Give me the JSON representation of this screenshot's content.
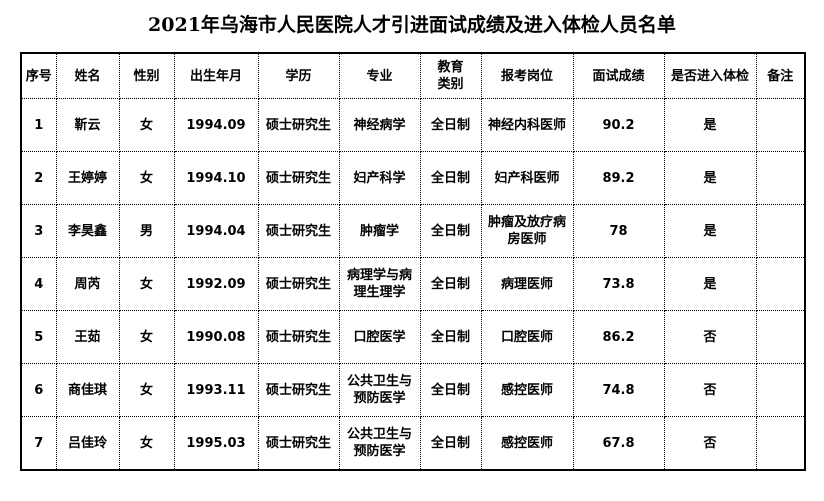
{
  "title": "2021年乌海市人民医院人才引进面试成绩及进入体检人员名单",
  "headers": [
    "序号",
    "姓名",
    "性别",
    "出生年月",
    "学历",
    "专业",
    "教育类别",
    "报考岗位",
    "面试成绩",
    "是否进入体检",
    "备注"
  ],
  "rows": [
    [
      "1",
      "靳云",
      "女",
      "1994.09",
      "硕士研究生",
      "神经病学",
      "全日制",
      "神经内科医师",
      "90.2",
      "是",
      ""
    ],
    [
      "2",
      "王婷婷",
      "女",
      "1994.10",
      "硕士研究生",
      "妇产科学",
      "全日制",
      "妇产科医师",
      "89.2",
      "是",
      ""
    ],
    [
      "3",
      "李昊鑫",
      "男",
      "1994.04",
      "硕士研究生",
      "肿瘤学",
      "全日制",
      "肿瘤及放疗病房医师",
      "78",
      "是",
      ""
    ],
    [
      "4",
      "周芮",
      "女",
      "1992.09",
      "硕士研究生",
      "病理学与病理生理学",
      "全日制",
      "病理医师",
      "73.8",
      "是",
      ""
    ],
    [
      "5",
      "王茹",
      "女",
      "1990.08",
      "硕士研究生",
      "口腔医学",
      "全日制",
      "口腔医师",
      "86.2",
      "否",
      ""
    ],
    [
      "6",
      "商佳琪",
      "女",
      "1993.11",
      "硕士研究生",
      "公共卫生与预防医学",
      "全日制",
      "感控医师",
      "74.8",
      "否",
      ""
    ],
    [
      "7",
      "吕佳玲",
      "女",
      "1995.03",
      "硕士研究生",
      "公共卫生与预防医学",
      "全日制",
      "感控医师",
      "67.8",
      "否",
      ""
    ]
  ]
}
